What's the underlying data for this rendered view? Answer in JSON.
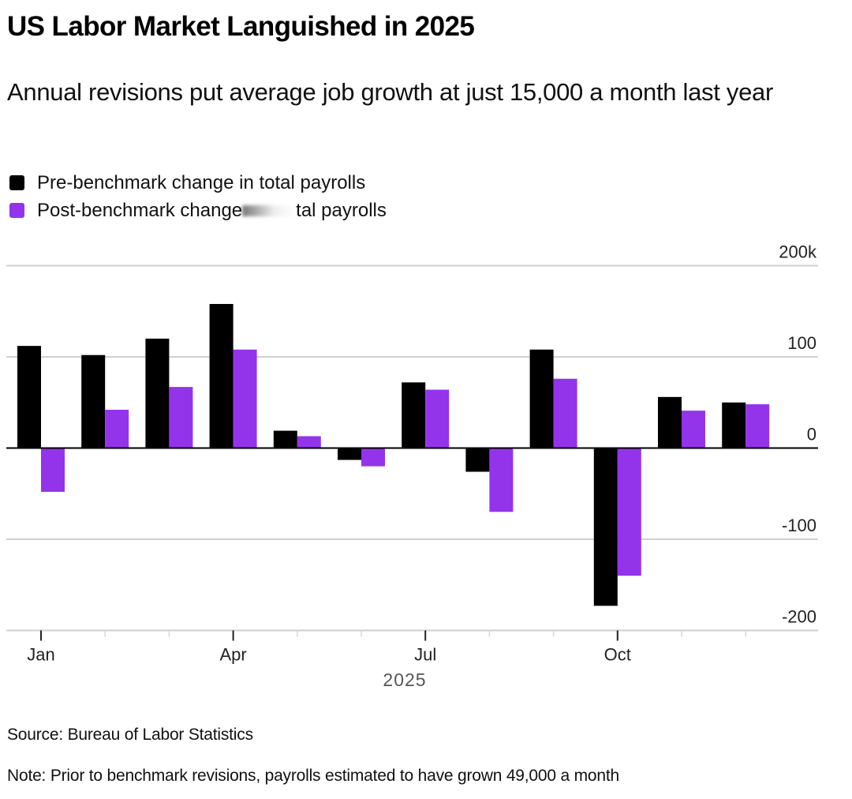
{
  "title": "US Labor Market Languished in 2025",
  "subtitle": "Annual revisions put average job growth at just 15,000 a month last year",
  "legend": [
    {
      "label": "Pre-benchmark change in total payrolls",
      "color": "#000000"
    },
    {
      "label_visible_start": "Post-benchmark change",
      "label_visible_end": "tal payrolls",
      "label": "Post-benchmark change in total payrolls",
      "color": "#9334ea"
    }
  ],
  "footer": {
    "source": "Source: Bureau of Labor Statistics",
    "note": "Note: Prior to benchmark revisions, payrolls estimated to have grown 49,000 a month"
  },
  "chart_data": {
    "type": "bar",
    "title": "US Labor Market Languished in 2025",
    "subtitle": "Annual revisions put average job growth at just 15,000 a month last year",
    "xlabel": "2025",
    "ylabel": "",
    "units": "thousands of jobs",
    "categories": [
      "Jan",
      "Feb",
      "Mar",
      "Apr",
      "May",
      "Jun",
      "Jul",
      "Aug",
      "Sep",
      "Oct",
      "Nov",
      "Dec"
    ],
    "x_tick_labels": [
      "Jan",
      "Apr",
      "Jul",
      "Oct"
    ],
    "series": [
      {
        "name": "Pre-benchmark change in total payrolls",
        "color": "#000000",
        "values": [
          112,
          102,
          120,
          158,
          19,
          -13,
          72,
          -26,
          108,
          -173,
          56,
          50
        ]
      },
      {
        "name": "Post-benchmark change in total payrolls",
        "color": "#9334ea",
        "values": [
          -48,
          42,
          67,
          108,
          13,
          -20,
          64,
          -70,
          76,
          -140,
          41,
          48
        ]
      }
    ],
    "ylim": [
      -200,
      200
    ],
    "y_ticks": [
      200,
      100,
      0,
      -100,
      -200
    ],
    "y_tick_labels": [
      "200k",
      "100",
      "0",
      "-100",
      "-200"
    ],
    "y_axis_side": "right",
    "grid": true,
    "legend_position": "top-left"
  }
}
